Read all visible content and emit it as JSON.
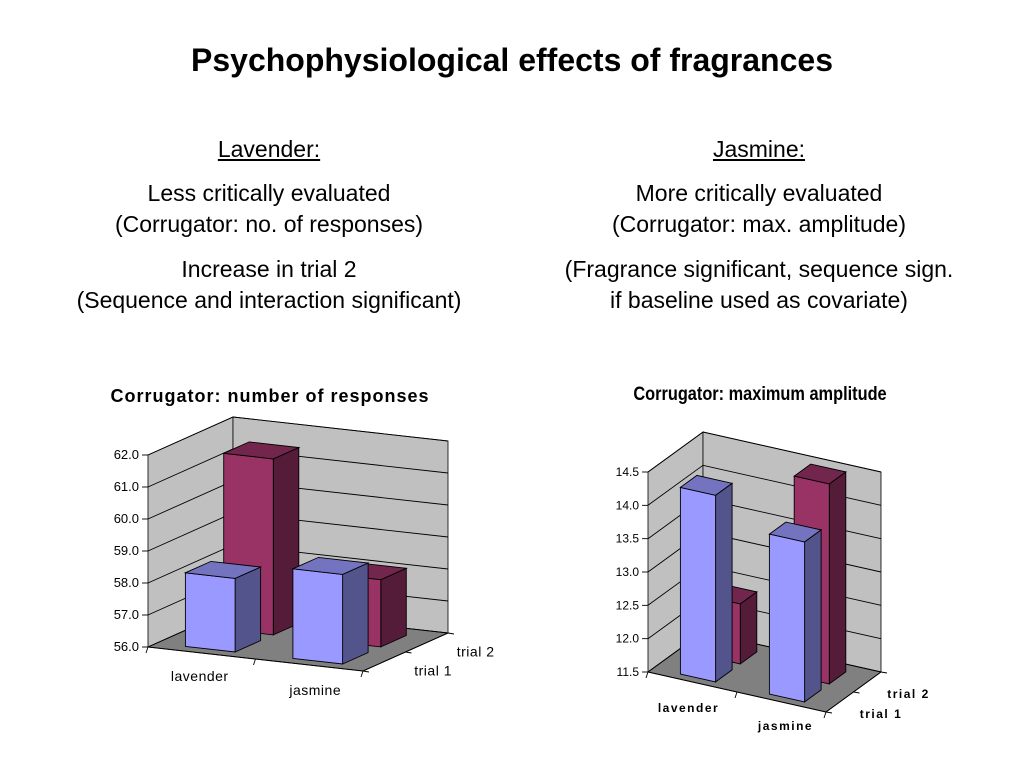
{
  "title": "Psychophysiological effects of fragrances",
  "left": {
    "heading": "Lavender:",
    "line1": "Less critically evaluated",
    "line2": "(Corrugator: no. of responses)",
    "line3": "Increase in trial 2",
    "line4": "(Sequence and interaction significant)"
  },
  "right": {
    "heading": "Jasmine:",
    "line1": "More critically evaluated",
    "line2": "(Corrugator: max. amplitude)",
    "line3": "(Fragrance significant, sequence sign.",
    "line4": "if baseline used as covariate)"
  },
  "colors": {
    "trial1": "#9999ff",
    "trial2": "#993366",
    "wall": "#c0c0c0",
    "floor": "#808080"
  },
  "chart_data": [
    {
      "type": "bar",
      "title": "Corrugator: number of responses",
      "categories": [
        "lavender",
        "jasmine"
      ],
      "depth_labels": [
        "trial 1",
        "trial 2"
      ],
      "series": [
        {
          "name": "trial 1",
          "values": [
            58.3,
            58.8
          ]
        },
        {
          "name": "trial 2",
          "values": [
            61.5,
            58.1
          ]
        }
      ],
      "yticks": [
        "56.0",
        "57.0",
        "58.0",
        "59.0",
        "60.0",
        "61.0",
        "62.0"
      ],
      "ylim": [
        56,
        62
      ],
      "grid": true
    },
    {
      "type": "bar",
      "title": "Corrugator: maximum amplitude",
      "categories": [
        "lavender",
        "jasmine"
      ],
      "depth_labels": [
        "trial  1",
        "trial  2"
      ],
      "series": [
        {
          "name": "trial  1",
          "values": [
            14.3,
            13.9
          ]
        },
        {
          "name": "trial  2",
          "values": [
            12.4,
            14.5
          ]
        }
      ],
      "yticks": [
        "11.5",
        "12.0",
        "12.5",
        "13.0",
        "13.5",
        "14.0",
        "14.5"
      ],
      "ylim": [
        11.5,
        14.5
      ],
      "grid": true
    }
  ]
}
